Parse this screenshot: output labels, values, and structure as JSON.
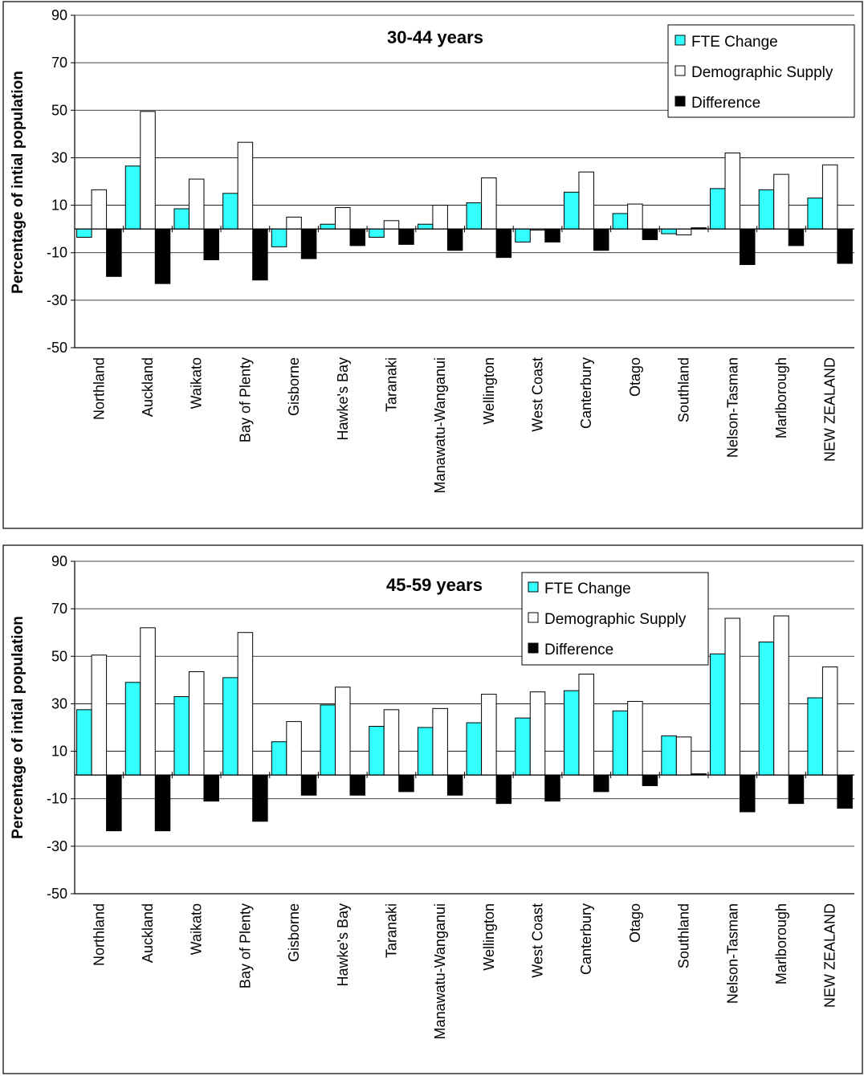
{
  "chart_data": [
    {
      "type": "bar",
      "title": "30-44 years",
      "ylabel": "Percentage of intial population",
      "xlabel": "",
      "ylim": [
        -50,
        90
      ],
      "yticks": [
        90,
        70,
        50,
        30,
        10,
        -10,
        -30,
        -50
      ],
      "grid": true,
      "legend_position": "top-right",
      "categories": [
        "Northland",
        "Auckland",
        "Waikato",
        "Bay of Plenty",
        "Gisborne",
        "Hawke's Bay",
        "Taranaki",
        "Manawatu-Wanganui",
        "Wellington",
        "West Coast",
        "Canterbury",
        "Otago",
        "Southland",
        "Nelson-Tasman",
        "Marlborough",
        "NEW ZEALAND"
      ],
      "series": [
        {
          "name": "FTE Change",
          "color": "#33ffff",
          "values": [
            -3.5,
            26.5,
            8.5,
            15,
            -7.5,
            2,
            -3.5,
            2,
            11,
            -5.5,
            15.5,
            6.5,
            -2,
            17,
            16.5,
            13
          ]
        },
        {
          "name": "Demographic Supply",
          "color": "#ffffff",
          "values": [
            16.5,
            49.5,
            21,
            36.5,
            5,
            9,
            3.5,
            10,
            21.5,
            -0.5,
            24,
            10.5,
            -2.5,
            32,
            23,
            27
          ]
        },
        {
          "name": "Difference",
          "color": "#000000",
          "values": [
            -20,
            -23,
            -13,
            -21.5,
            -12.5,
            -7,
            -6.5,
            -9,
            -12,
            -5.5,
            -9,
            -4.5,
            0.5,
            -15,
            -7,
            -14.5
          ]
        }
      ]
    },
    {
      "type": "bar",
      "title": "45-59 years",
      "ylabel": "Percentage of intial population",
      "xlabel": "",
      "ylim": [
        -50,
        90
      ],
      "yticks": [
        90,
        70,
        50,
        30,
        10,
        -10,
        -30,
        -50
      ],
      "grid": true,
      "legend_position": "top-center",
      "categories": [
        "Northland",
        "Auckland",
        "Waikato",
        "Bay of Plenty",
        "Gisborne",
        "Hawke's Bay",
        "Taranaki",
        "Manawatu-Wanganui",
        "Wellington",
        "West Coast",
        "Canterbury",
        "Otago",
        "Southland",
        "Nelson-Tasman",
        "Marlborough",
        "NEW ZEALAND"
      ],
      "series": [
        {
          "name": "FTE Change",
          "color": "#33ffff",
          "values": [
            27.5,
            39,
            33,
            41,
            14,
            29.5,
            20.5,
            20,
            22,
            24,
            35.5,
            27,
            16.5,
            51,
            56,
            32.5
          ]
        },
        {
          "name": "Demographic Supply",
          "color": "#ffffff",
          "values": [
            50.5,
            62,
            43.5,
            60,
            22.5,
            37,
            27.5,
            28,
            34,
            35,
            42.5,
            31,
            16,
            66,
            67,
            45.5
          ]
        },
        {
          "name": "Difference",
          "color": "#000000",
          "values": [
            -23.5,
            -23.5,
            -11,
            -19.5,
            -8.5,
            -8.5,
            -7,
            -8.5,
            -12,
            -11,
            -7,
            -4.5,
            0.5,
            -15.5,
            -12,
            -14
          ]
        }
      ]
    }
  ]
}
